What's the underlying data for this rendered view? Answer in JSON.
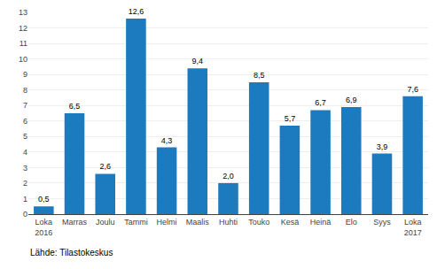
{
  "chart_data": {
    "type": "bar",
    "categories": [
      "Loka\n2016",
      "Marras",
      "Joulu",
      "Tammi",
      "Helmi",
      "Maalis",
      "Huhti",
      "Touko",
      "Kesä",
      "Heinä",
      "Elo",
      "Syys",
      "Loka\n2017"
    ],
    "values": [
      0.5,
      6.5,
      2.6,
      12.6,
      4.3,
      9.4,
      2.0,
      8.5,
      5.7,
      6.7,
      6.9,
      3.9,
      7.6
    ],
    "value_labels": [
      "0,5",
      "6,5",
      "2,6",
      "12,6",
      "4,3",
      "9,4",
      "2,0",
      "8,5",
      "5,7",
      "6,7",
      "6,9",
      "3,9",
      "7,6"
    ],
    "data_labels": true,
    "color": "#1c7bbf",
    "ylim": [
      0,
      13
    ],
    "yticks": [
      0,
      1,
      2,
      3,
      4,
      5,
      6,
      7,
      8,
      9,
      10,
      11,
      12,
      13
    ],
    "grid": true,
    "annotations": [
      "Lähde: Tilastokeskus"
    ]
  }
}
